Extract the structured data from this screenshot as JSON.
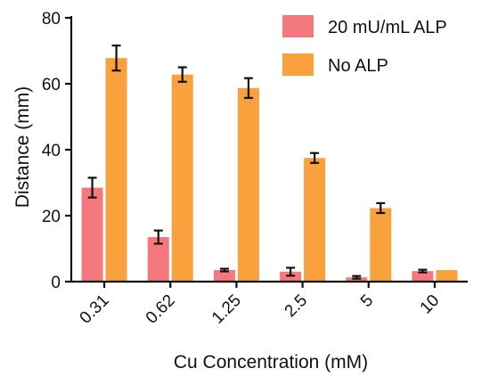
{
  "chart_data": {
    "type": "bar",
    "xlabel": "Cu Concentration (mM)",
    "ylabel": "Distance (mm)",
    "ylim": [
      0,
      80
    ],
    "yticks": [
      0,
      20,
      40,
      60,
      80
    ],
    "categories": [
      "0.31",
      "0.62",
      "1.25",
      "2.5",
      "5",
      "10"
    ],
    "series": [
      {
        "name": "20 mU/mL ALP",
        "color": "#f4787d",
        "values": [
          28.5,
          13.5,
          3.5,
          3.0,
          1.3,
          3.2
        ],
        "errors": [
          3.0,
          2.0,
          0.4,
          1.2,
          0.4,
          0.4
        ]
      },
      {
        "name": "No ALP",
        "color": "#f9a23d",
        "values": [
          67.8,
          62.8,
          58.7,
          37.5,
          22.3,
          3.5
        ],
        "errors": [
          3.8,
          2.2,
          3.0,
          1.5,
          1.5,
          0
        ]
      }
    ],
    "legend_position": "top-right",
    "grid": false
  }
}
